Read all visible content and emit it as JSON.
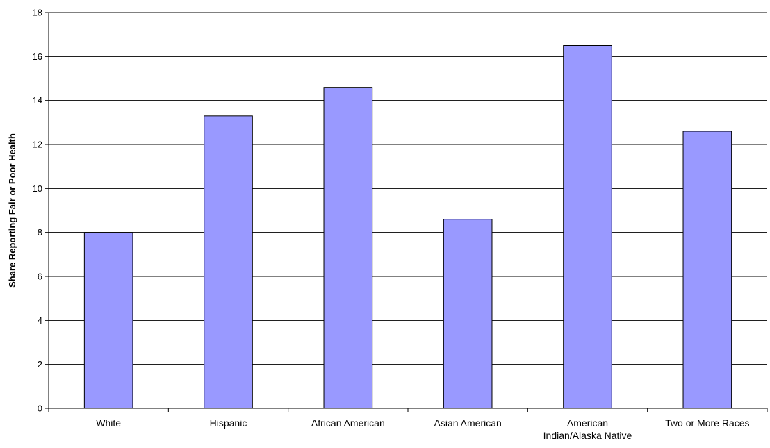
{
  "chart_data": {
    "type": "bar",
    "title": "",
    "xlabel": "",
    "ylabel": "Share Reporting Fair or Poor Health",
    "ylim": [
      0,
      18
    ],
    "yticks": [
      0,
      2,
      4,
      6,
      8,
      10,
      12,
      14,
      16,
      18
    ],
    "grid": true,
    "categories": [
      [
        "White"
      ],
      [
        "Hispanic"
      ],
      [
        "African American"
      ],
      [
        "Asian American"
      ],
      [
        "American",
        "Indian/Alaska Native"
      ],
      [
        "Two or More Races"
      ]
    ],
    "values": [
      8.0,
      13.3,
      14.6,
      8.6,
      16.5,
      12.6
    ],
    "colors": {
      "bar_fill": "#9999ff",
      "bar_stroke": "#000000",
      "grid": "#000000"
    }
  }
}
